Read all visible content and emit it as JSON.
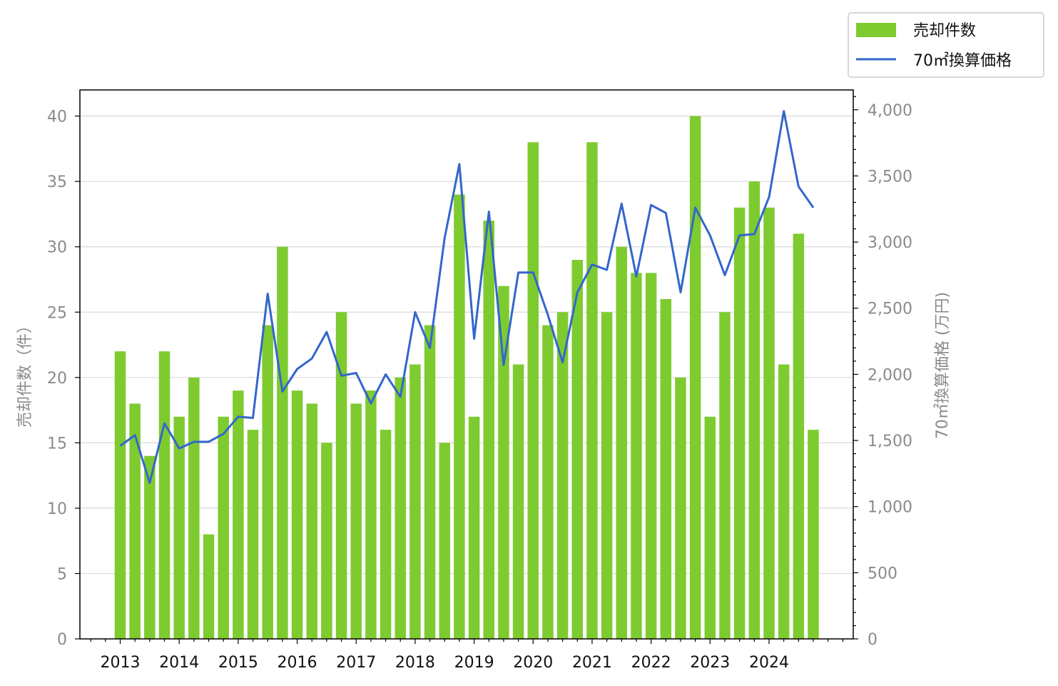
{
  "chart_data": {
    "type": "bar",
    "colors": {
      "bars": "#7ecb2f",
      "line": "#3366cc",
      "grid": "#d9d9d9",
      "tick_text": "#8a8a8a"
    },
    "legend": {
      "placement": "top-right",
      "items": [
        {
          "label": "売却件数",
          "kind": "bar"
        },
        {
          "label": "70㎡換算価格",
          "kind": "line"
        }
      ]
    },
    "y_left": {
      "label": "売却件数（件）",
      "lim": [
        0,
        42
      ],
      "ticks": [
        0,
        5,
        10,
        15,
        20,
        25,
        30,
        35,
        40
      ],
      "tick_labels": [
        "0",
        "5",
        "10",
        "15",
        "20",
        "25",
        "30",
        "35",
        "40"
      ]
    },
    "y_right": {
      "label": "70㎡換算価格 (万円)",
      "lim": [
        0,
        4150
      ],
      "ticks": [
        0,
        500,
        1000,
        1500,
        2000,
        2500,
        3000,
        3500,
        4000
      ],
      "tick_labels": [
        "0",
        "500",
        "1,000",
        "1,500",
        "2,000",
        "2,500",
        "3,000",
        "3,500",
        "4,000"
      ]
    },
    "x": {
      "year_labels": [
        "2013",
        "2014",
        "2015",
        "2016",
        "2017",
        "2018",
        "2019",
        "2020",
        "2021",
        "2022",
        "2023",
        "2024"
      ],
      "start_year": 2013,
      "quarters": 48
    },
    "grid": "horizontal",
    "series": [
      {
        "name": "売却件数",
        "type": "bar",
        "axis": "left",
        "values": [
          22,
          18,
          14,
          22,
          17,
          20,
          8,
          17,
          19,
          16,
          24,
          30,
          19,
          18,
          15,
          25,
          18,
          19,
          16,
          20,
          21,
          24,
          15,
          34,
          17,
          32,
          27,
          21,
          38,
          24,
          25,
          29,
          38,
          25,
          30,
          28,
          28,
          26,
          20,
          40,
          17,
          25,
          33,
          35,
          33,
          21,
          31,
          16
        ]
      },
      {
        "name": "70㎡換算価格",
        "type": "line",
        "axis": "right",
        "values": [
          1460,
          1540,
          1180,
          1630,
          1440,
          1490,
          1490,
          1550,
          1680,
          1670,
          2610,
          1870,
          2040,
          2120,
          2320,
          1990,
          2010,
          1780,
          2000,
          1830,
          2470,
          2200,
          3030,
          3590,
          2270,
          3230,
          2070,
          2770,
          2770,
          2450,
          2090,
          2620,
          2830,
          2790,
          3290,
          2740,
          3280,
          3220,
          2620,
          3260,
          3050,
          2750,
          3050,
          3060,
          3340,
          3990,
          3420,
          3260
        ]
      }
    ]
  }
}
